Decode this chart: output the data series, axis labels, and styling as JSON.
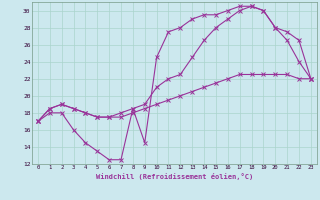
{
  "xlabel": "Windchill (Refroidissement éolien,°C)",
  "bg_color": "#cce8ee",
  "grid_color": "#aad4cc",
  "line_color": "#993399",
  "xlim": [
    -0.5,
    23.5
  ],
  "ylim": [
    12,
    31
  ],
  "xticks": [
    0,
    1,
    2,
    3,
    4,
    5,
    6,
    7,
    8,
    9,
    10,
    11,
    12,
    13,
    14,
    15,
    16,
    17,
    18,
    19,
    20,
    21,
    22,
    23
  ],
  "yticks": [
    12,
    14,
    16,
    18,
    20,
    22,
    24,
    26,
    28,
    30
  ],
  "line1_x": [
    0,
    1,
    2,
    3,
    4,
    5,
    6,
    7,
    8,
    9,
    10,
    11,
    12,
    13,
    14,
    15,
    16,
    17,
    18,
    19,
    20,
    21,
    22,
    23
  ],
  "line1_y": [
    17,
    18,
    18,
    16,
    14.5,
    13.5,
    12.5,
    12.5,
    18.5,
    14.5,
    24.5,
    27.5,
    28,
    29,
    29.5,
    29.5,
    30,
    30.5,
    30.5,
    30,
    28,
    26.5,
    24,
    22
  ],
  "line2_x": [
    0,
    1,
    2,
    3,
    4,
    5,
    6,
    7,
    8,
    9,
    10,
    11,
    12,
    13,
    14,
    15,
    16,
    17,
    18,
    19,
    20,
    21,
    22,
    23
  ],
  "line2_y": [
    17,
    18.5,
    19,
    18.5,
    18,
    17.5,
    17.5,
    17.5,
    18,
    18.5,
    19,
    19.5,
    20,
    20.5,
    21,
    21.5,
    22,
    22.5,
    22.5,
    22.5,
    22.5,
    22.5,
    22,
    22
  ],
  "line3_x": [
    0,
    1,
    2,
    3,
    4,
    5,
    6,
    7,
    8,
    9,
    10,
    11,
    12,
    13,
    14,
    15,
    16,
    17,
    18,
    19,
    20,
    21,
    22,
    23
  ],
  "line3_y": [
    17,
    18.5,
    19,
    18.5,
    18,
    17.5,
    17.5,
    18,
    18.5,
    19,
    21,
    22,
    22.5,
    24.5,
    26.5,
    28,
    29,
    30,
    30.5,
    30,
    28,
    27.5,
    26.5,
    22
  ]
}
